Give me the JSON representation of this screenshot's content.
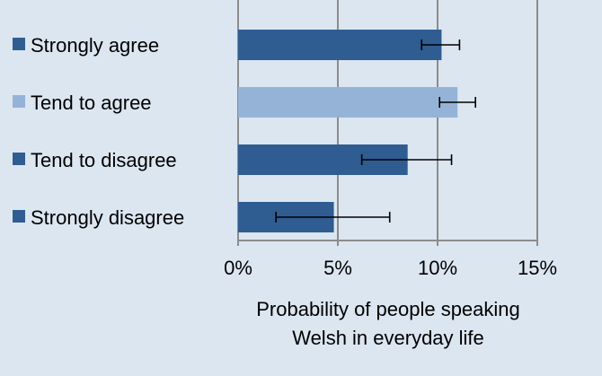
{
  "chart_data": {
    "type": "bar",
    "orientation": "horizontal",
    "categories": [
      "Strongly agree",
      "Tend to agree",
      "Tend to disagree",
      "Strongly disagree"
    ],
    "values": [
      10.2,
      11.0,
      8.5,
      4.8
    ],
    "error_low": [
      9.2,
      10.1,
      6.2,
      1.9
    ],
    "error_high": [
      11.1,
      11.9,
      10.7,
      7.6
    ],
    "bar_colors": [
      "#2f5d92",
      "#95b3d7",
      "#2f5d92",
      "#2f5d92"
    ],
    "xlim": [
      0,
      15
    ],
    "xticks": [
      0,
      5,
      10,
      15
    ],
    "xtick_labels": [
      "0%",
      "5%",
      "10%",
      "15%"
    ],
    "xlabel_lines": [
      "Probability of people speaking",
      "Welsh in everyday life"
    ],
    "grid": "vertical gridlines",
    "legend": "category labels with color markers at left"
  }
}
